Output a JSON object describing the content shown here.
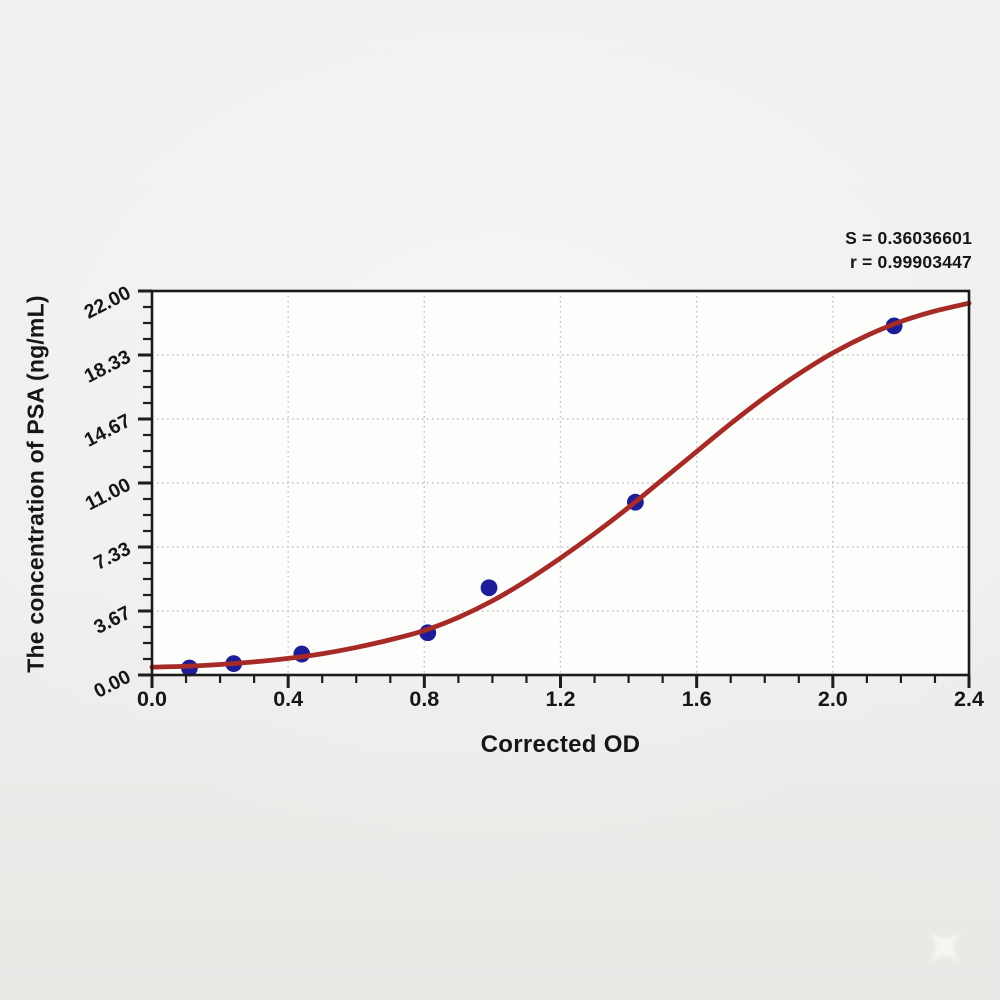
{
  "chart_data": {
    "type": "scatter",
    "title": "",
    "xlabel": "Corrected OD",
    "ylabel": "The concentration of PSA (ng/mL)",
    "xlim": [
      0,
      2.4
    ],
    "ylim": [
      0,
      22
    ],
    "x_tick_labels": [
      "0.0",
      "0.4",
      "0.8",
      "1.2",
      "1.6",
      "2.0",
      "2.4"
    ],
    "y_tick_labels": [
      "0.00",
      "3.67",
      "7.33",
      "11.00",
      "14.67",
      "18.33",
      "22.00"
    ],
    "x_minor_tick_step": 0.1,
    "y_minor_divisions_per_major": 4,
    "grid": "dotted gray gridlines at major ticks, plot framed on all sides",
    "legend": "none",
    "annotations": {
      "line1": "S = 0.36036601",
      "line2": "r = 0.99903447"
    },
    "series": [
      {
        "name": "standard-points",
        "type": "scatter",
        "marker": "filled circle",
        "marker_color": "#1d1d97",
        "points_od_conc": [
          [
            0.11,
            0.4
          ],
          [
            0.24,
            0.65
          ],
          [
            0.44,
            1.2
          ],
          [
            0.81,
            2.42
          ],
          [
            0.99,
            5.0
          ],
          [
            1.42,
            9.9
          ],
          [
            2.18,
            20.0
          ]
        ]
      },
      {
        "name": "fitted-curve",
        "type": "line",
        "line_color": "#a62b27",
        "x": [
          0,
          0.1,
          0.2,
          0.3,
          0.4,
          0.5,
          0.6,
          0.7,
          0.8,
          0.9,
          1.0,
          1.1,
          1.2,
          1.3,
          1.4,
          1.5,
          1.6,
          1.7,
          1.8,
          1.9,
          2.0,
          2.1,
          2.2,
          2.3,
          2.4
        ],
        "y": [
          0.45,
          0.5,
          0.6,
          0.75,
          0.95,
          1.22,
          1.58,
          2.02,
          2.55,
          3.3,
          4.25,
          5.4,
          6.7,
          8.1,
          9.6,
          11.2,
          12.8,
          14.4,
          15.9,
          17.25,
          18.45,
          19.45,
          20.25,
          20.85,
          21.3
        ]
      }
    ],
    "colors": {
      "curve": "#a62b27",
      "points": "#1d1d97",
      "frame": "#1c1c1c",
      "grid": "#c6c4c2",
      "plot_bg": "#fdfdfc",
      "page_bg": "#f0efee",
      "text": "#161616",
      "watermark": "#ffffff"
    }
  }
}
